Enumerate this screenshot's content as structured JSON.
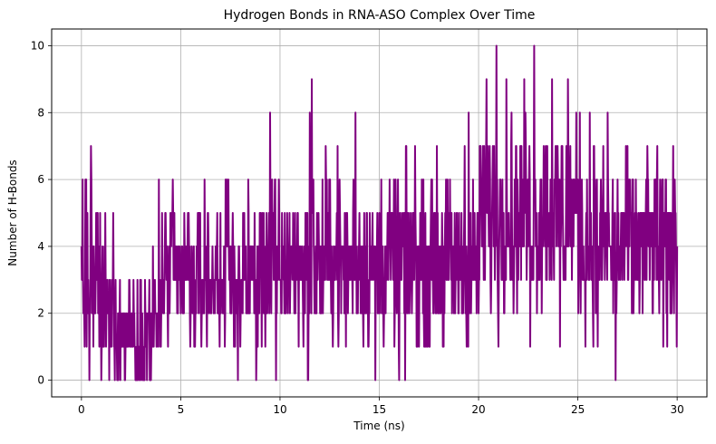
{
  "chart_data": {
    "type": "line",
    "title": "Hydrogen Bonds in RNA-ASO Complex Over Time",
    "xlabel": "Time (ns)",
    "ylabel": "Number of H-Bonds",
    "xlim": [
      -1.5,
      31.5
    ],
    "ylim": [
      -0.5,
      10.5
    ],
    "x_ticks": [
      0,
      5,
      10,
      15,
      20,
      25,
      30
    ],
    "y_ticks": [
      0,
      2,
      4,
      6,
      8,
      10
    ],
    "grid": true,
    "legend": "none",
    "series": [
      {
        "color": "#800080",
        "sampling_interval_ns": 0.02,
        "x_range": [
          0,
          30
        ],
        "segments": [
          {
            "from": 0,
            "to": 1,
            "base": 3,
            "spread": 2,
            "extremes": [
              [
                0.05,
                6
              ],
              [
                0.1,
                2
              ],
              [
                0.2,
                6
              ],
              [
                0.25,
                1
              ],
              [
                0.3,
                5
              ],
              [
                0.4,
                0
              ],
              [
                0.5,
                6
              ],
              [
                0.6,
                1
              ],
              [
                0.7,
                2
              ],
              [
                0.8,
                5
              ],
              [
                0.9,
                1
              ]
            ]
          },
          {
            "from": 1,
            "to": 1.2,
            "base": 2,
            "spread": 2,
            "extremes": [
              [
                0.48,
                7
              ],
              [
                0.4,
                0
              ],
              [
                1.0,
                0
              ]
            ]
          },
          {
            "from": 1.2,
            "to": 2,
            "base": 2,
            "spread": 2,
            "extremes": [
              [
                1.2,
                5
              ],
              [
                1.4,
                0
              ],
              [
                1.6,
                5
              ],
              [
                1.8,
                0
              ]
            ]
          },
          {
            "from": 2,
            "to": 4,
            "base": 1.5,
            "spread": 1.5,
            "extremes": [
              [
                2.2,
                0
              ],
              [
                2.4,
                3
              ],
              [
                2.8,
                0
              ],
              [
                3.2,
                3
              ],
              [
                3.5,
                0
              ],
              [
                3.6,
                4
              ]
            ]
          },
          {
            "from": 4,
            "to": 9,
            "base": 3,
            "spread": 2,
            "extremes": [
              [
                3.9,
                6
              ],
              [
                4.6,
                6
              ],
              [
                5.4,
                5
              ],
              [
                6.2,
                6
              ],
              [
                7.0,
                5
              ],
              [
                7.4,
                6
              ],
              [
                8.0,
                1
              ],
              [
                8.4,
                6
              ],
              [
                8.8,
                0
              ]
            ]
          },
          {
            "from": 9,
            "to": 15,
            "base": 3.5,
            "spread": 2.2,
            "extremes": [
              [
                9.5,
                8
              ],
              [
                9.8,
                0
              ],
              [
                11.4,
                0
              ],
              [
                11.5,
                8
              ],
              [
                11.6,
                9
              ],
              [
                12.3,
                7
              ],
              [
                12.9,
                7
              ],
              [
                13.8,
                8
              ],
              [
                14.8,
                0
              ]
            ]
          },
          {
            "from": 15,
            "to": 20,
            "base": 3.5,
            "spread": 2.2,
            "extremes": [
              [
                16.0,
                0
              ],
              [
                16.3,
                0
              ],
              [
                16.8,
                7
              ],
              [
                17.4,
                1
              ],
              [
                17.9,
                7
              ],
              [
                19.3,
                7
              ],
              [
                19.5,
                8
              ]
            ]
          },
          {
            "from": 20,
            "to": 25,
            "base": 5,
            "spread": 2.5,
            "extremes": [
              [
                20.4,
                9
              ],
              [
                20.9,
                10
              ],
              [
                21.4,
                9
              ],
              [
                21.0,
                1
              ],
              [
                22.3,
                9
              ],
              [
                22.6,
                1
              ],
              [
                22.8,
                10
              ],
              [
                23.7,
                9
              ],
              [
                24.1,
                1
              ],
              [
                24.5,
                9
              ]
            ]
          },
          {
            "from": 25,
            "to": 30,
            "base": 4,
            "spread": 2.2,
            "extremes": [
              [
                25.1,
                8
              ],
              [
                25.6,
                8
              ],
              [
                25.8,
                7
              ],
              [
                26.0,
                1
              ],
              [
                26.5,
                8
              ],
              [
                26.9,
                0
              ],
              [
                27.5,
                7
              ],
              [
                28.5,
                7
              ],
              [
                29.0,
                7
              ],
              [
                29.3,
                1
              ],
              [
                29.5,
                1
              ],
              [
                29.8,
                7
              ]
            ]
          }
        ]
      }
    ]
  }
}
